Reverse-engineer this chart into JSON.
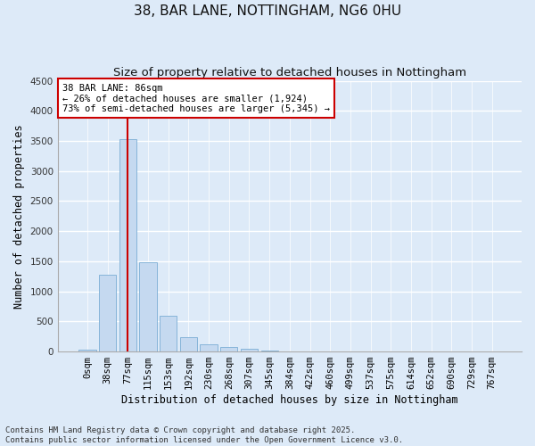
{
  "title": "38, BAR LANE, NOTTINGHAM, NG6 0HU",
  "subtitle": "Size of property relative to detached houses in Nottingham",
  "xlabel": "Distribution of detached houses by size in Nottingham",
  "ylabel": "Number of detached properties",
  "bar_color": "#c5d9f0",
  "bar_edge_color": "#7aadd4",
  "background_color": "#ddeaf8",
  "fig_color": "#ddeaf8",
  "grid_color": "#ffffff",
  "annotation_box_color": "#cc0000",
  "vline_color": "#cc0000",
  "categories": [
    "0sqm",
    "38sqm",
    "77sqm",
    "115sqm",
    "153sqm",
    "192sqm",
    "230sqm",
    "268sqm",
    "307sqm",
    "345sqm",
    "384sqm",
    "422sqm",
    "460sqm",
    "499sqm",
    "537sqm",
    "575sqm",
    "614sqm",
    "652sqm",
    "690sqm",
    "729sqm",
    "767sqm"
  ],
  "values": [
    30,
    1280,
    3530,
    1490,
    590,
    245,
    115,
    75,
    45,
    20,
    0,
    0,
    0,
    0,
    0,
    0,
    0,
    0,
    0,
    0,
    0
  ],
  "ylim": [
    0,
    4500
  ],
  "yticks": [
    0,
    500,
    1000,
    1500,
    2000,
    2500,
    3000,
    3500,
    4000,
    4500
  ],
  "vline_x": 2,
  "annotation_text": "38 BAR LANE: 86sqm\n← 26% of detached houses are smaller (1,924)\n73% of semi-detached houses are larger (5,345) →",
  "footer_text": "Contains HM Land Registry data © Crown copyright and database right 2025.\nContains public sector information licensed under the Open Government Licence v3.0.",
  "title_fontsize": 11,
  "subtitle_fontsize": 9.5,
  "label_fontsize": 8.5,
  "tick_fontsize": 7.5,
  "annotation_fontsize": 7.5,
  "footer_fontsize": 6.5
}
